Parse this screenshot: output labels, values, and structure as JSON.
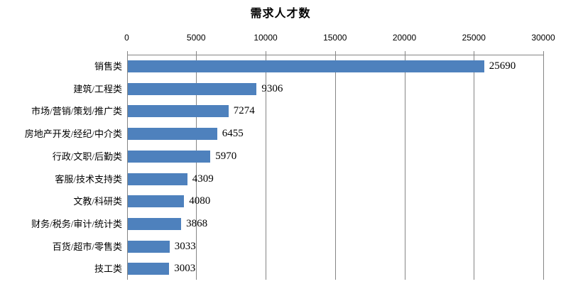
{
  "chart_data": {
    "type": "bar",
    "orientation": "horizontal",
    "title": "需求人才数",
    "categories": [
      "销售类",
      "建筑/工程类",
      "市场/营销/策划/推广类",
      "房地产开发/经纪/中介类",
      "行政/文职/后勤类",
      "客服/技术支持类",
      "文教/科研类",
      "财务/税务/审计/统计类",
      "百货/超市/零售类",
      "技工类"
    ],
    "values": [
      25690,
      9306,
      7274,
      6455,
      5970,
      4309,
      4080,
      3868,
      3033,
      3003
    ],
    "value_labels": [
      "25690",
      "9306",
      "7274",
      "6455",
      "5970",
      "4309",
      "4080",
      "3868",
      "3033",
      "3003"
    ],
    "xlabel": "",
    "ylabel": "",
    "xlim": [
      0,
      30000
    ],
    "xticks": [
      0,
      5000,
      10000,
      15000,
      20000,
      25000,
      30000
    ],
    "xtick_labels": [
      "0",
      "5000",
      "10000",
      "15000",
      "20000",
      "25000",
      "30000"
    ],
    "grid": true,
    "axis_position": "top",
    "legend": "none",
    "bar_color": "#4E81BD",
    "gridline_color": "#858585",
    "text_color": "#000000",
    "background_color": "#FFFFFF"
  }
}
